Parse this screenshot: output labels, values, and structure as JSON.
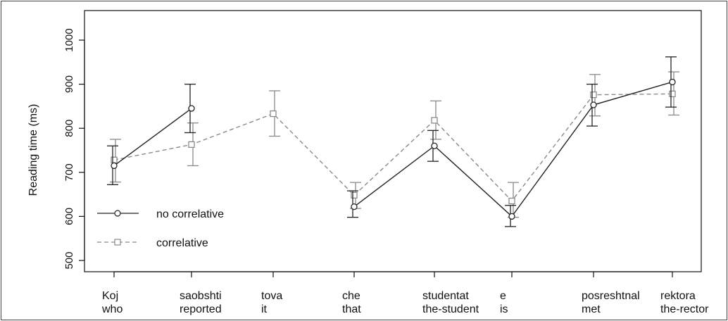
{
  "chart_data": {
    "type": "line",
    "ylabel": "Reading time (ms)",
    "xlabel": "",
    "ylim": [
      500,
      1000
    ],
    "yticks": [
      500,
      600,
      700,
      800,
      900,
      1000
    ],
    "grid": false,
    "legend_position": "bottom-left",
    "x_labels": [
      {
        "line1": "Koj",
        "line2": "who"
      },
      {
        "line1": "saobshti",
        "line2": "reported"
      },
      {
        "line1": "tova",
        "line2": "it"
      },
      {
        "line1": "che",
        "line2": "that"
      },
      {
        "line1": "studentat",
        "line2": "the-student"
      },
      {
        "line1": "e",
        "line2": "is"
      },
      {
        "line1": "posreshtnal",
        "line2": "met"
      },
      {
        "line1": "rektora",
        "line2": "the-rector"
      }
    ],
    "series": [
      {
        "name": "no correlative",
        "line_style": "solid",
        "marker": "circle",
        "color": "#222222",
        "segments": [
          [
            0,
            1
          ],
          [
            3,
            4,
            5,
            6,
            7
          ]
        ],
        "points": [
          {
            "x": 0,
            "y": 715,
            "lo": 672,
            "hi": 760
          },
          {
            "x": 1,
            "y": 845,
            "lo": 790,
            "hi": 900
          },
          {
            "x": 3,
            "y": 622,
            "lo": 598,
            "hi": 658
          },
          {
            "x": 4,
            "y": 760,
            "lo": 725,
            "hi": 795
          },
          {
            "x": 5,
            "y": 600,
            "lo": 577,
            "hi": 625
          },
          {
            "x": 6,
            "y": 853,
            "lo": 805,
            "hi": 900
          },
          {
            "x": 7,
            "y": 905,
            "lo": 848,
            "hi": 962
          }
        ]
      },
      {
        "name": "correlative",
        "line_style": "dashed",
        "marker": "square",
        "color": "#8a8a8a",
        "segments": [
          [
            0,
            1,
            2,
            3,
            4,
            5,
            6,
            7
          ]
        ],
        "points": [
          {
            "x": 0,
            "y": 728,
            "lo": 678,
            "hi": 775
          },
          {
            "x": 1,
            "y": 763,
            "lo": 715,
            "hi": 812
          },
          {
            "x": 2,
            "y": 833,
            "lo": 782,
            "hi": 885
          },
          {
            "x": 3,
            "y": 648,
            "lo": 618,
            "hi": 677
          },
          {
            "x": 4,
            "y": 818,
            "lo": 775,
            "hi": 862
          },
          {
            "x": 5,
            "y": 635,
            "lo": 598,
            "hi": 677
          },
          {
            "x": 6,
            "y": 876,
            "lo": 828,
            "hi": 922
          },
          {
            "x": 7,
            "y": 878,
            "lo": 830,
            "hi": 928
          }
        ]
      }
    ]
  }
}
